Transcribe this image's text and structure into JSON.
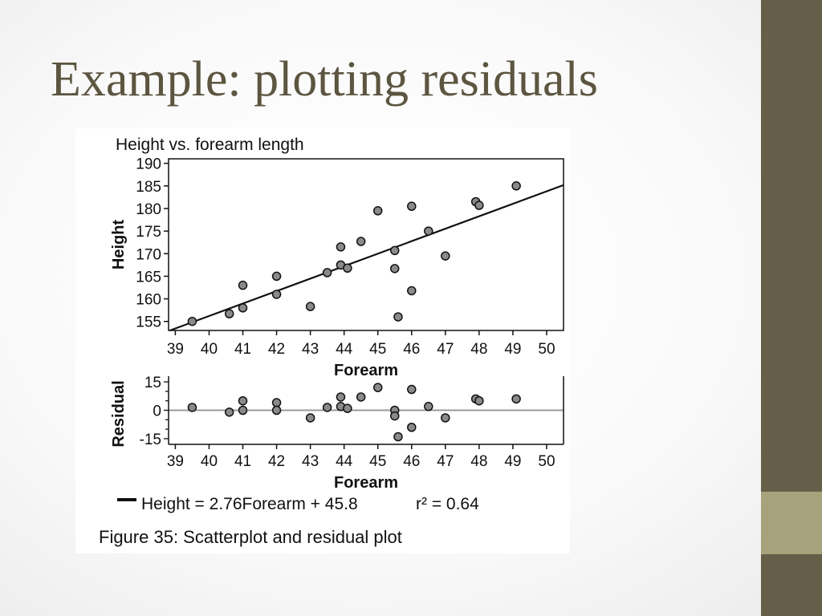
{
  "slide": {
    "title": "Example: plotting residuals",
    "colors": {
      "sidebar": "#655e48",
      "sidebar_accent": "#a6a27c",
      "title": "#5c5540"
    }
  },
  "figure": {
    "legend_text": "Height = 2.76Forearm + 45.8",
    "r2_text": "r² = 0.64",
    "caption": "Figure 35: Scatterplot and residual plot"
  },
  "chart_data": [
    {
      "type": "scatter",
      "title": "Height vs. forearm length",
      "xlabel": "Forearm",
      "ylabel": "Height",
      "xlim": [
        38.8,
        50.5
      ],
      "ylim": [
        153,
        191
      ],
      "xticks": [
        39,
        40,
        41,
        42,
        43,
        44,
        45,
        46,
        47,
        48,
        49,
        50
      ],
      "yticks": [
        155,
        160,
        165,
        170,
        175,
        180,
        185,
        190
      ],
      "x": [
        39.5,
        40.6,
        41.0,
        41.0,
        42.0,
        42.0,
        43.0,
        43.5,
        43.9,
        43.9,
        44.1,
        44.5,
        45.0,
        45.5,
        45.5,
        45.6,
        46.0,
        46.0,
        46.5,
        47.0,
        47.9,
        48.0,
        49.1
      ],
      "y": [
        155.0,
        156.7,
        163.0,
        158.0,
        165.0,
        161.0,
        158.3,
        165.8,
        171.5,
        167.5,
        166.8,
        172.7,
        179.5,
        170.7,
        166.7,
        156.0,
        180.5,
        161.8,
        175.0,
        169.5,
        181.5,
        180.7,
        185.0
      ],
      "regression": {
        "slope": 2.76,
        "intercept": 45.8
      },
      "grid": false
    },
    {
      "type": "scatter",
      "xlabel": "Forearm",
      "ylabel": "Residual",
      "xlim": [
        38.8,
        50.5
      ],
      "ylim": [
        -18,
        18
      ],
      "xticks": [
        39,
        40,
        41,
        42,
        43,
        44,
        45,
        46,
        47,
        48,
        49,
        50
      ],
      "yticks": [
        -15,
        0,
        15
      ],
      "x": [
        39.5,
        40.6,
        41.0,
        41.0,
        42.0,
        42.0,
        43.0,
        43.5,
        43.9,
        43.9,
        44.1,
        44.5,
        45.0,
        45.5,
        45.5,
        45.6,
        46.0,
        46.0,
        46.5,
        47.0,
        47.9,
        48.0,
        49.1
      ],
      "y": [
        1.5,
        -1,
        5,
        0,
        4,
        0,
        -4,
        1.5,
        7,
        2,
        1,
        7,
        12,
        0,
        -3,
        -14,
        11,
        -9,
        2,
        -4,
        6,
        5,
        6
      ],
      "reference_line": 0
    }
  ]
}
